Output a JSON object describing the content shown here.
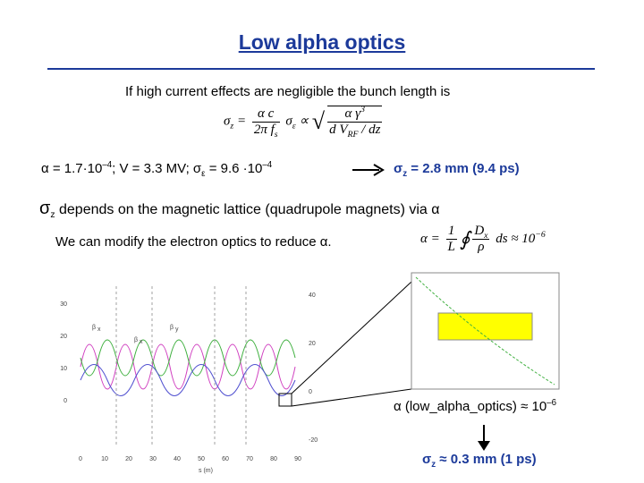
{
  "header": {
    "title": "Low alpha optics"
  },
  "intro": "If high current effects are negligible the bunch length is",
  "formula1": {
    "lhs": "σ",
    "lhs_sub": "z",
    "eq": "=",
    "num": "α c",
    "den": "2π f",
    "den_sub": "s",
    "sigma": "σ",
    "sigma_sub": "ε",
    "prop": "∝",
    "rnum": "α γ",
    "rnum_sup": "3",
    "rden": "d V",
    "rden_sub": "RF",
    "rden_tail": "/ dz"
  },
  "params": [
    "α = 1.7·10",
    "–4",
    "; V = 3.3 MV; σ",
    "ε",
    " = 9.6 ·10",
    "–4"
  ],
  "result1": [
    "σ",
    "z",
    " = 2.8 mm (9.4 ps)"
  ],
  "depends": [
    "σ",
    "z",
    " depends on the magnetic lattice (quadrupole magnets) via α"
  ],
  "modify": "We can modify the electron optics to reduce α.",
  "formula2": {
    "lhs": "α =",
    "one": "1",
    "L": "L",
    "integral": "∮",
    "Dx": "D",
    "Dx_sub": "x",
    "rho": "ρ",
    "ds": "ds",
    "approx": "≈ 10",
    "exp": "−6"
  },
  "plot": {
    "xticks": [
      "0",
      "10",
      "20",
      "30",
      "40",
      "50",
      "60",
      "70",
      "80",
      "90"
    ],
    "xlabel": "s (m)",
    "yticks": [
      "30",
      "20",
      "10",
      "0"
    ],
    "y2ticks": [
      "40",
      "20",
      "0",
      "-20"
    ],
    "labels": [
      "β",
      "x",
      "β",
      "y",
      "β",
      "x"
    ]
  },
  "result2": [
    "α (low_alpha_optics) ≈ 10",
    "–6"
  ],
  "result3": [
    "σ",
    "z",
    " ≈ 0.3 mm (1 ps)"
  ]
}
